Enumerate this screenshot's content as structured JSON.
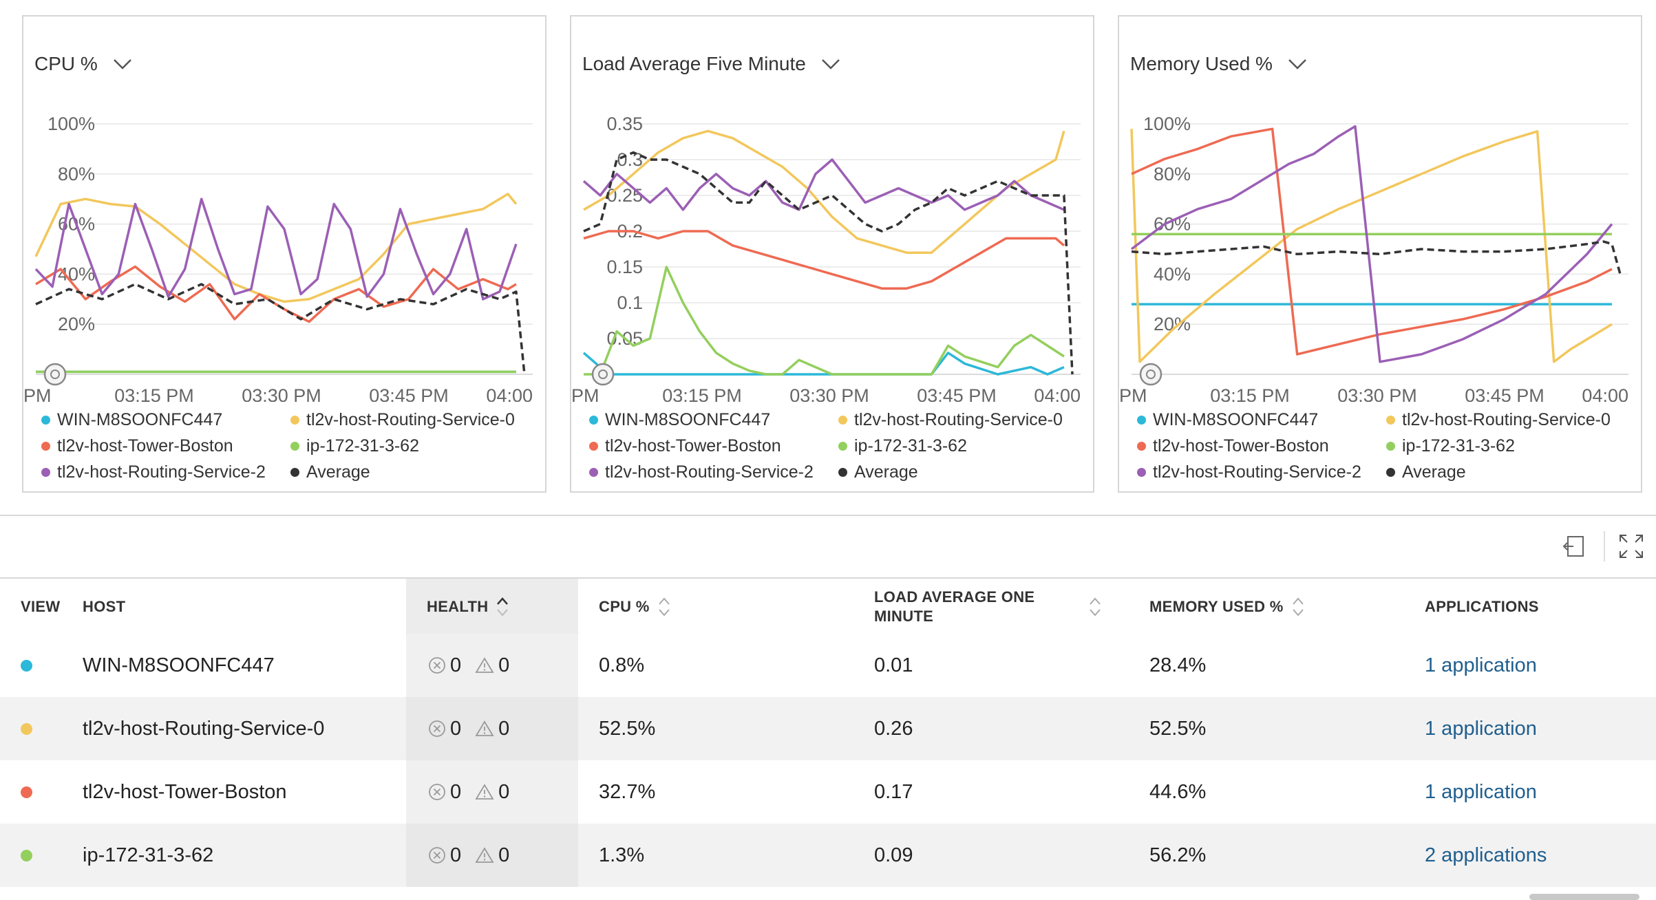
{
  "series_colors": {
    "WIN-M8SOONFC447": "#2cb8d8",
    "tl2v-host-Routing-Service-0": "#f2c75c",
    "tl2v-host-Tower-Boston": "#ee6a52",
    "ip-172-31-3-62": "#93cf5d",
    "tl2v-host-Routing-Service-2": "#9b5fb5",
    "Average": "#333333"
  },
  "legend": [
    "WIN-M8SOONFC447",
    "tl2v-host-Routing-Service-0",
    "tl2v-host-Tower-Boston",
    "ip-172-31-3-62",
    "tl2v-host-Routing-Service-2",
    "Average"
  ],
  "charts": [
    {
      "title": "CPU %",
      "dropdown_icon": "chevron-down-icon"
    },
    {
      "title": "Load Average Five Minute",
      "dropdown_icon": "chevron-down-icon"
    },
    {
      "title": "Memory Used %",
      "dropdown_icon": "chevron-down-icon"
    }
  ],
  "chart_data": [
    {
      "type": "line",
      "title": "CPU %",
      "x_tick_labels": [
        "PM",
        "03:15 PM",
        "03:30 PM",
        "03:45 PM",
        "04:00"
      ],
      "y_tick_labels": [
        "100%",
        "80%",
        "60%",
        "40%",
        "20%"
      ],
      "y_ticks": [
        100,
        80,
        60,
        40,
        20
      ],
      "ylim": [
        0,
        100
      ],
      "xlim": [
        0,
        60
      ],
      "series": [
        {
          "name": "WIN-M8SOONFC447",
          "x": [
            0,
            10,
            20,
            30,
            40,
            50,
            58
          ],
          "values": [
            1,
            1,
            1,
            1,
            1,
            1,
            1
          ]
        },
        {
          "name": "tl2v-host-Routing-Service-0",
          "x": [
            0,
            3,
            6,
            9,
            12,
            15,
            18,
            21,
            24,
            27,
            30,
            33,
            36,
            39,
            42,
            45,
            48,
            51,
            54,
            57,
            58
          ],
          "values": [
            47,
            68,
            70,
            68,
            67,
            60,
            52,
            44,
            36,
            32,
            29,
            30,
            34,
            38,
            48,
            60,
            62,
            64,
            66,
            72,
            68
          ]
        },
        {
          "name": "tl2v-host-Tower-Boston",
          "x": [
            0,
            3,
            6,
            9,
            12,
            15,
            18,
            21,
            24,
            27,
            30,
            33,
            36,
            39,
            42,
            45,
            48,
            51,
            54,
            57,
            58
          ],
          "values": [
            36,
            42,
            30,
            37,
            43,
            35,
            29,
            36,
            22,
            32,
            26,
            21,
            30,
            34,
            27,
            30,
            42,
            34,
            38,
            34,
            36
          ]
        },
        {
          "name": "ip-172-31-3-62",
          "x": [
            0,
            10,
            20,
            30,
            40,
            50,
            58
          ],
          "values": [
            1,
            1,
            1,
            1,
            1,
            1,
            1
          ]
        },
        {
          "name": "tl2v-host-Routing-Service-2",
          "x": [
            0,
            2,
            4,
            6,
            8,
            10,
            12,
            14,
            16,
            18,
            20,
            22,
            24,
            26,
            28,
            30,
            32,
            34,
            36,
            38,
            40,
            42,
            44,
            46,
            48,
            50,
            52,
            54,
            56,
            58
          ],
          "values": [
            42,
            35,
            68,
            50,
            32,
            40,
            68,
            50,
            31,
            42,
            70,
            50,
            32,
            34,
            67,
            58,
            32,
            38,
            68,
            58,
            31,
            40,
            66,
            48,
            32,
            40,
            58,
            30,
            33,
            52
          ]
        },
        {
          "name": "Average",
          "x": [
            0,
            4,
            8,
            12,
            16,
            20,
            24,
            28,
            32,
            36,
            40,
            44,
            48,
            52,
            56,
            58,
            59
          ],
          "values": [
            28,
            34,
            30,
            36,
            30,
            36,
            28,
            30,
            22,
            30,
            26,
            30,
            28,
            34,
            30,
            33,
            0
          ]
        }
      ]
    },
    {
      "type": "line",
      "title": "Load Average Five Minute",
      "x_tick_labels": [
        "PM",
        "03:15 PM",
        "03:30 PM",
        "03:45 PM",
        "04:00"
      ],
      "y_tick_labels": [
        "0.35",
        "0.3",
        "0.25",
        "0.2",
        "0.15",
        "0.1",
        "0.05"
      ],
      "y_ticks": [
        0.35,
        0.3,
        0.25,
        0.2,
        0.15,
        0.1,
        0.05
      ],
      "ylim": [
        0,
        0.35
      ],
      "xlim": [
        0,
        60
      ],
      "series": [
        {
          "name": "WIN-M8SOONFC447",
          "x": [
            0,
            3,
            6,
            10,
            20,
            30,
            34,
            38,
            42,
            44,
            46,
            50,
            54,
            56,
            58
          ],
          "values": [
            0.03,
            0.0,
            0.0,
            0.0,
            0.0,
            0.0,
            0.0,
            0.0,
            0.0,
            0.03,
            0.015,
            0.0,
            0.01,
            0.0,
            0.01
          ]
        },
        {
          "name": "tl2v-host-Routing-Service-0",
          "x": [
            0,
            3,
            6,
            9,
            12,
            15,
            18,
            21,
            24,
            27,
            30,
            33,
            36,
            39,
            42,
            45,
            48,
            51,
            54,
            57,
            58
          ],
          "values": [
            0.23,
            0.25,
            0.28,
            0.31,
            0.33,
            0.34,
            0.33,
            0.31,
            0.29,
            0.26,
            0.22,
            0.19,
            0.18,
            0.17,
            0.17,
            0.2,
            0.23,
            0.26,
            0.28,
            0.3,
            0.34
          ]
        },
        {
          "name": "tl2v-host-Tower-Boston",
          "x": [
            0,
            3,
            6,
            9,
            12,
            15,
            18,
            21,
            24,
            27,
            30,
            33,
            36,
            39,
            42,
            45,
            48,
            51,
            54,
            57,
            58
          ],
          "values": [
            0.19,
            0.2,
            0.2,
            0.19,
            0.2,
            0.2,
            0.18,
            0.17,
            0.16,
            0.15,
            0.14,
            0.13,
            0.12,
            0.12,
            0.13,
            0.15,
            0.17,
            0.19,
            0.19,
            0.19,
            0.18
          ]
        },
        {
          "name": "ip-172-31-3-62",
          "x": [
            0,
            2,
            4,
            6,
            8,
            10,
            12,
            14,
            16,
            18,
            20,
            22,
            24,
            26,
            28,
            30,
            34,
            38,
            42,
            44,
            46,
            50,
            52,
            54,
            56,
            58
          ],
          "values": [
            0.0,
            0.0,
            0.06,
            0.04,
            0.05,
            0.15,
            0.1,
            0.06,
            0.03,
            0.015,
            0.005,
            0.0,
            0.0,
            0.02,
            0.01,
            0.0,
            0.0,
            0.0,
            0.0,
            0.04,
            0.025,
            0.01,
            0.04,
            0.055,
            0.04,
            0.025
          ]
        },
        {
          "name": "tl2v-host-Routing-Service-2",
          "x": [
            0,
            2,
            4,
            6,
            8,
            10,
            12,
            14,
            16,
            18,
            20,
            22,
            24,
            26,
            28,
            30,
            32,
            34,
            36,
            38,
            40,
            42,
            44,
            46,
            48,
            50,
            52,
            54,
            56,
            58
          ],
          "values": [
            0.27,
            0.25,
            0.28,
            0.26,
            0.24,
            0.26,
            0.23,
            0.26,
            0.28,
            0.26,
            0.25,
            0.27,
            0.24,
            0.23,
            0.28,
            0.3,
            0.27,
            0.24,
            0.25,
            0.26,
            0.25,
            0.24,
            0.25,
            0.23,
            0.24,
            0.25,
            0.27,
            0.25,
            0.24,
            0.23
          ]
        },
        {
          "name": "Average",
          "x": [
            0,
            2,
            4,
            6,
            8,
            10,
            12,
            14,
            16,
            18,
            20,
            22,
            24,
            26,
            28,
            30,
            32,
            34,
            36,
            38,
            40,
            42,
            44,
            46,
            48,
            50,
            52,
            54,
            56,
            58,
            59
          ],
          "values": [
            0.2,
            0.21,
            0.3,
            0.31,
            0.3,
            0.3,
            0.29,
            0.28,
            0.26,
            0.24,
            0.24,
            0.27,
            0.25,
            0.23,
            0.24,
            0.25,
            0.23,
            0.21,
            0.2,
            0.21,
            0.23,
            0.24,
            0.26,
            0.25,
            0.26,
            0.27,
            0.26,
            0.25,
            0.25,
            0.25,
            0.0
          ]
        }
      ]
    },
    {
      "type": "line",
      "title": "Memory Used %",
      "x_tick_labels": [
        "PM",
        "03:15 PM",
        "03:30 PM",
        "03:45 PM",
        "04:00"
      ],
      "y_tick_labels": [
        "100%",
        "80%",
        "60%",
        "40%",
        "20%"
      ],
      "y_ticks": [
        100,
        80,
        60,
        40,
        20
      ],
      "ylim": [
        0,
        100
      ],
      "xlim": [
        0,
        60
      ],
      "series": [
        {
          "name": "WIN-M8SOONFC447",
          "x": [
            0,
            10,
            20,
            30,
            40,
            50,
            58
          ],
          "values": [
            28,
            28,
            28,
            28,
            28,
            28,
            28
          ]
        },
        {
          "name": "tl2v-host-Routing-Service-0",
          "x": [
            0,
            1,
            5,
            10,
            15,
            20,
            25,
            30,
            35,
            40,
            45,
            49,
            51,
            53,
            58
          ],
          "values": [
            98,
            5,
            18,
            32,
            45,
            58,
            66,
            73,
            80,
            87,
            93,
            97,
            5,
            10,
            20
          ]
        },
        {
          "name": "tl2v-host-Tower-Boston",
          "x": [
            0,
            4,
            8,
            12,
            17,
            20,
            25,
            30,
            35,
            40,
            45,
            50,
            55,
            58
          ],
          "values": [
            80,
            86,
            90,
            95,
            98,
            8,
            12,
            16,
            19,
            22,
            26,
            31,
            37,
            42
          ]
        },
        {
          "name": "ip-172-31-3-62",
          "x": [
            0,
            10,
            20,
            30,
            40,
            50,
            58
          ],
          "values": [
            56,
            56,
            56,
            56,
            56,
            56,
            56
          ]
        },
        {
          "name": "tl2v-host-Routing-Service-2",
          "x": [
            0,
            4,
            8,
            12,
            16,
            19,
            22,
            25,
            27,
            30,
            35,
            40,
            45,
            50,
            55,
            58
          ],
          "values": [
            50,
            60,
            66,
            70,
            78,
            84,
            88,
            95,
            99,
            5,
            8,
            14,
            22,
            32,
            48,
            60
          ]
        },
        {
          "name": "Average",
          "x": [
            0,
            4,
            8,
            12,
            16,
            20,
            25,
            30,
            35,
            40,
            45,
            50,
            55,
            57,
            58,
            59
          ],
          "values": [
            49,
            48,
            49,
            50,
            51,
            48,
            49,
            48,
            50,
            49,
            49,
            50,
            52,
            53,
            52,
            40
          ]
        }
      ]
    }
  ],
  "toolbar": {
    "export_icon": "export-icon",
    "fullscreen_icon": "fullscreen-icon"
  },
  "table": {
    "headers": {
      "view": "VIEW",
      "host": "HOST",
      "health": "HEALTH",
      "cpu": "CPU %",
      "load_line1": "LOAD AVERAGE ONE",
      "load_line2": "MINUTE",
      "memory": "MEMORY USED %",
      "applications": "APPLICATIONS"
    },
    "rows": [
      {
        "host": "WIN-M8SOONFC447",
        "color": "#2cb8d8",
        "critical": "0",
        "warning": "0",
        "cpu": "0.8%",
        "load": "0.01",
        "memory": "28.4%",
        "applications": "1 application"
      },
      {
        "host": "tl2v-host-Routing-Service-0",
        "color": "#f2c75c",
        "critical": "0",
        "warning": "0",
        "cpu": "52.5%",
        "load": "0.26",
        "memory": "52.5%",
        "applications": "1 application"
      },
      {
        "host": "tl2v-host-Tower-Boston",
        "color": "#ee6a52",
        "critical": "0",
        "warning": "0",
        "cpu": "32.7%",
        "load": "0.17",
        "memory": "44.6%",
        "applications": "1 application"
      },
      {
        "host": "ip-172-31-3-62",
        "color": "#93cf5d",
        "critical": "0",
        "warning": "0",
        "cpu": "1.3%",
        "load": "0.09",
        "memory": "56.2%",
        "applications": "2 applications"
      }
    ]
  }
}
